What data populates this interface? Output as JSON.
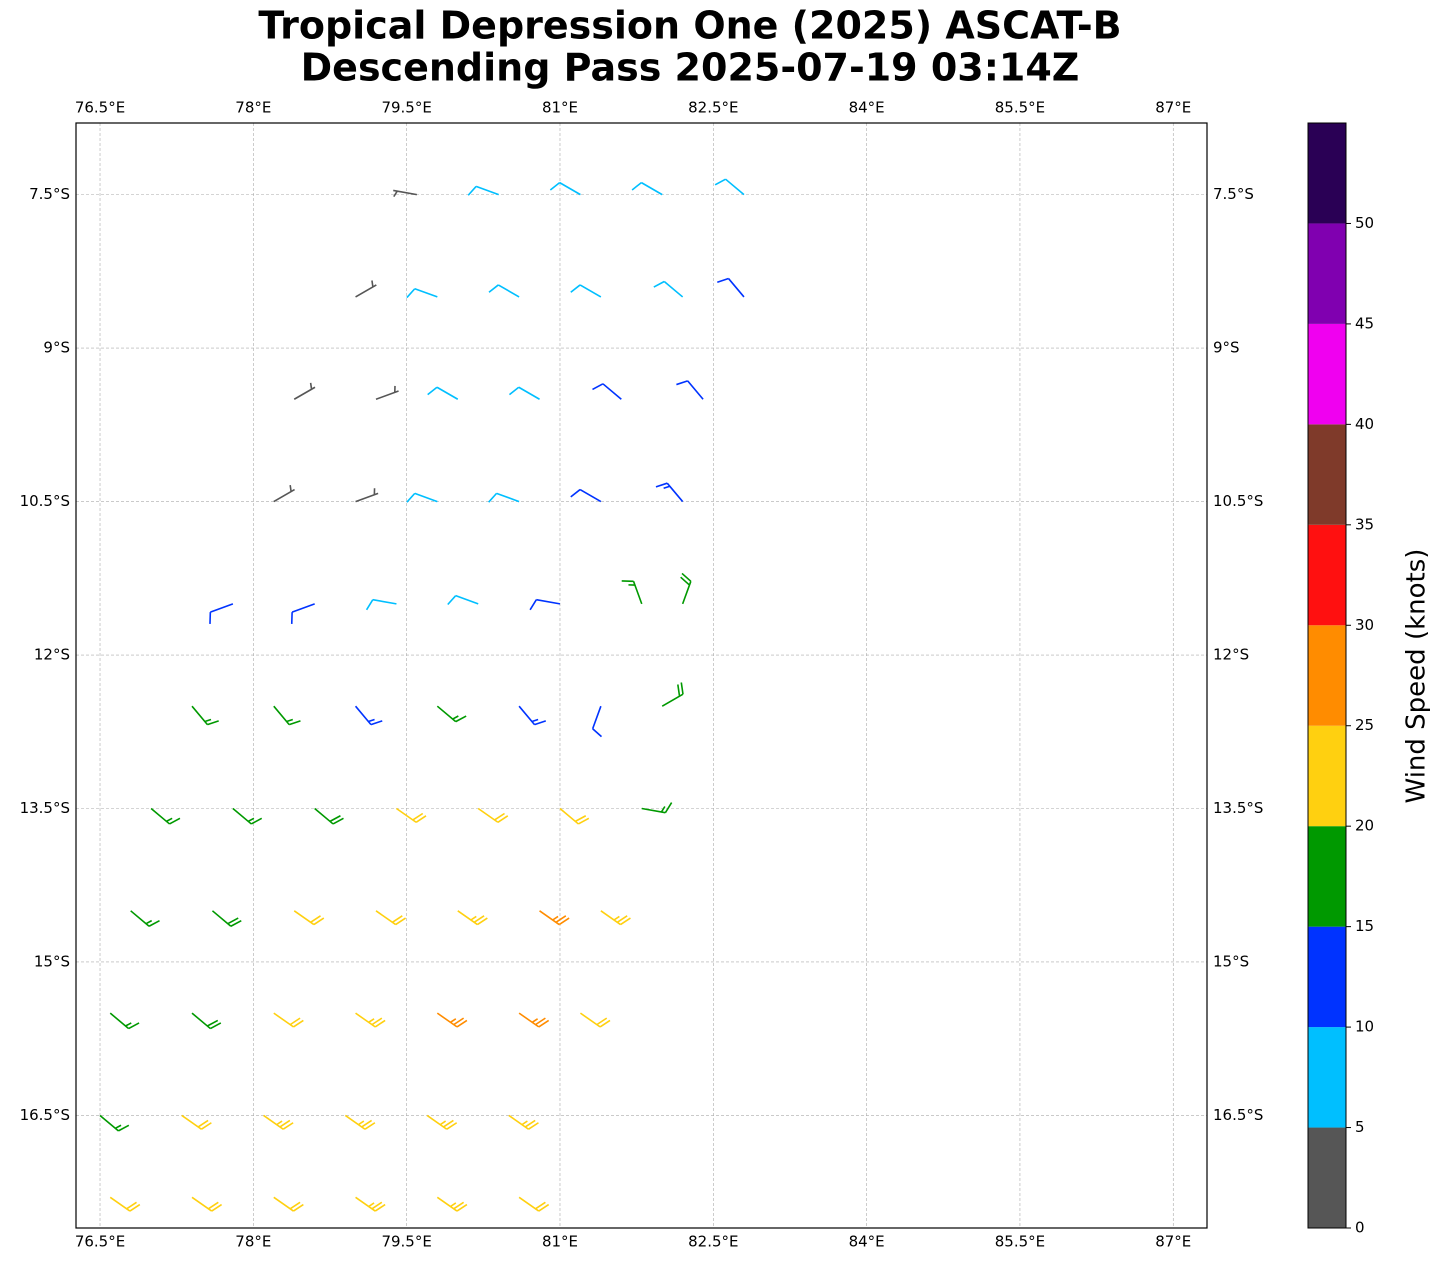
{
  "chart_data": {
    "type": "barbs",
    "title": "Tropical Depression One (2025) ASCAT-B",
    "subtitle": "Descending Pass 2025-07-19 03:14Z",
    "xlim": [
      76.265,
      87.33
    ],
    "ylim": [
      -17.6,
      -6.8
    ],
    "xticks": [
      {
        "value": 76.5,
        "label": "76.5°E"
      },
      {
        "value": 78,
        "label": "78°E"
      },
      {
        "value": 79.5,
        "label": "79.5°E"
      },
      {
        "value": 81,
        "label": "81°E"
      },
      {
        "value": 82.5,
        "label": "82.5°E"
      },
      {
        "value": 84,
        "label": "84°E"
      },
      {
        "value": 85.5,
        "label": "85.5°E"
      },
      {
        "value": 87,
        "label": "87°E"
      }
    ],
    "yticks": [
      {
        "value": -7.5,
        "label": "7.5°S"
      },
      {
        "value": -9,
        "label": "9°S"
      },
      {
        "value": -10.5,
        "label": "10.5°S"
      },
      {
        "value": -12,
        "label": "12°S"
      },
      {
        "value": -13.5,
        "label": "13.5°S"
      },
      {
        "value": -15,
        "label": "15°S"
      },
      {
        "value": -16.5,
        "label": "16.5°S"
      }
    ],
    "grid": true,
    "barbs": {
      "lon": [
        79.6,
        80.4,
        81.2,
        82.0,
        82.8,
        79.0,
        79.8,
        80.6,
        81.4,
        82.2,
        82.8,
        78.4,
        79.2,
        80.0,
        80.8,
        81.6,
        82.4,
        78.2,
        79.0,
        79.8,
        80.6,
        81.4,
        82.2,
        77.8,
        78.6,
        79.4,
        80.2,
        81.0,
        81.8,
        82.2,
        77.4,
        78.2,
        79.0,
        79.8,
        80.6,
        81.4,
        82.0,
        77.0,
        77.8,
        78.6,
        79.4,
        80.2,
        81.0,
        81.8,
        76.8,
        77.6,
        78.4,
        79.2,
        80.0,
        80.8,
        81.4,
        76.6,
        77.4,
        78.2,
        79.0,
        79.8,
        80.6,
        81.2,
        76.5,
        77.3,
        78.1,
        78.9,
        79.7,
        80.5,
        76.6,
        77.4,
        78.2,
        79.0,
        79.8,
        80.6
      ],
      "lat": [
        -7.5,
        -7.5,
        -7.5,
        -7.5,
        -7.5,
        -8.5,
        -8.5,
        -8.5,
        -8.5,
        -8.5,
        -8.5,
        -9.5,
        -9.5,
        -9.5,
        -9.5,
        -9.5,
        -9.5,
        -10.5,
        -10.5,
        -10.5,
        -10.5,
        -10.5,
        -10.5,
        -11.5,
        -11.5,
        -11.5,
        -11.5,
        -11.5,
        -11.5,
        -11.5,
        -12.5,
        -12.5,
        -12.5,
        -12.5,
        -12.5,
        -12.5,
        -12.5,
        -13.5,
        -13.5,
        -13.5,
        -13.5,
        -13.5,
        -13.5,
        -13.5,
        -14.5,
        -14.5,
        -14.5,
        -14.5,
        -14.5,
        -14.5,
        -14.5,
        -15.5,
        -15.5,
        -15.5,
        -15.5,
        -15.5,
        -15.5,
        -15.5,
        -16.5,
        -16.5,
        -16.5,
        -16.5,
        -16.5,
        -16.5,
        -17.3,
        -17.3,
        -17.3,
        -17.3,
        -17.3,
        -17.3
      ],
      "speed": [
        3,
        8,
        8,
        9,
        8,
        4,
        8,
        8,
        9,
        9,
        11,
        3,
        4,
        8,
        9,
        12,
        12,
        3,
        4,
        8,
        8,
        12,
        13,
        12,
        12,
        9,
        8,
        12,
        17,
        18,
        16,
        15,
        14,
        15,
        13,
        11,
        18,
        17,
        17,
        18,
        21,
        22,
        22,
        16,
        17,
        18,
        21,
        22,
        24,
        26,
        23,
        17,
        18,
        22,
        23,
        26,
        27,
        22,
        17,
        22,
        23,
        23,
        24,
        23,
        22,
        22,
        22,
        23,
        23,
        22
      ],
      "direction": [
        280,
        290,
        300,
        300,
        310,
        60,
        290,
        300,
        300,
        310,
        320,
        60,
        70,
        300,
        300,
        310,
        320,
        60,
        70,
        290,
        290,
        300,
        320,
        250,
        250,
        280,
        290,
        280,
        340,
        20,
        140,
        140,
        140,
        130,
        140,
        200,
        60,
        130,
        130,
        130,
        125,
        125,
        130,
        100,
        130,
        130,
        125,
        125,
        125,
        125,
        125,
        130,
        130,
        125,
        125,
        125,
        125,
        125,
        130,
        125,
        125,
        125,
        125,
        125,
        125,
        125,
        125,
        125,
        125,
        125
      ]
    },
    "colorbar": {
      "label": "Wind Speed (knots)",
      "bounds": [
        0,
        5,
        10,
        15,
        20,
        25,
        30,
        35,
        40,
        45,
        50,
        55
      ],
      "colors": [
        "#565656",
        "#00bfff",
        "#0033ff",
        "#009900",
        "#ffd010",
        "#ff8c00",
        "#ff1010",
        "#7f3a2a",
        "#f000f0",
        "#8000b0",
        "#2a0055"
      ],
      "ticks": [
        0,
        5,
        10,
        15,
        20,
        25,
        30,
        35,
        40,
        45,
        50
      ]
    }
  }
}
